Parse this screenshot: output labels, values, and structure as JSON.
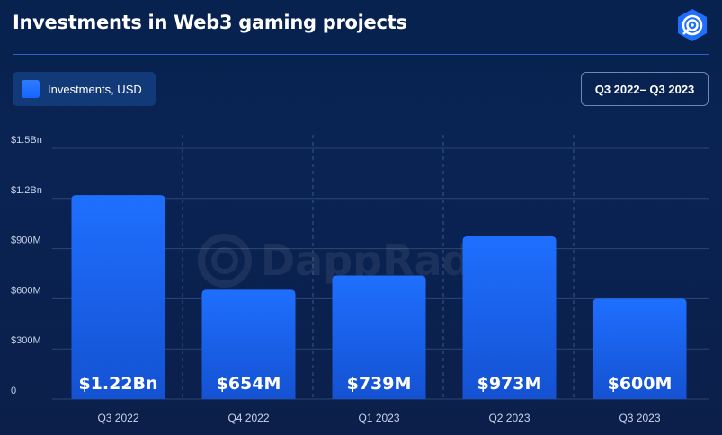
{
  "title": "Investments in Web3 gaming projects",
  "legend": {
    "label": "Investments, USD",
    "color": "#1f6fff"
  },
  "period_button": {
    "label": "Q3 2022– Q3 2023"
  },
  "logo": {
    "icon": "dappradar-logo-icon",
    "watermark_text": "DappRadar"
  },
  "chart_data": {
    "type": "bar",
    "categories": [
      "Q3 2022",
      "Q4 2022",
      "Q1 2023",
      "Q2 2023",
      "Q3 2023"
    ],
    "values": [
      1220000000,
      654000000,
      739000000,
      973000000,
      600000000
    ],
    "data_labels": [
      "$1.22Bn",
      "$654M",
      "$739M",
      "$973M",
      "$600M"
    ],
    "yticks": [
      0,
      300000000,
      600000000,
      900000000,
      1200000000,
      1500000000
    ],
    "ytick_labels": [
      "0",
      "$300M",
      "$600M",
      "$900M",
      "$1.2Bn",
      "$1.5Bn"
    ],
    "ylim": [
      0,
      1500000000
    ],
    "grid": true,
    "legend_position": "top-left",
    "colors": {
      "bar_top": "#1f6fff",
      "bar_bottom": "#1456d8",
      "grid": "#2a4677"
    }
  }
}
